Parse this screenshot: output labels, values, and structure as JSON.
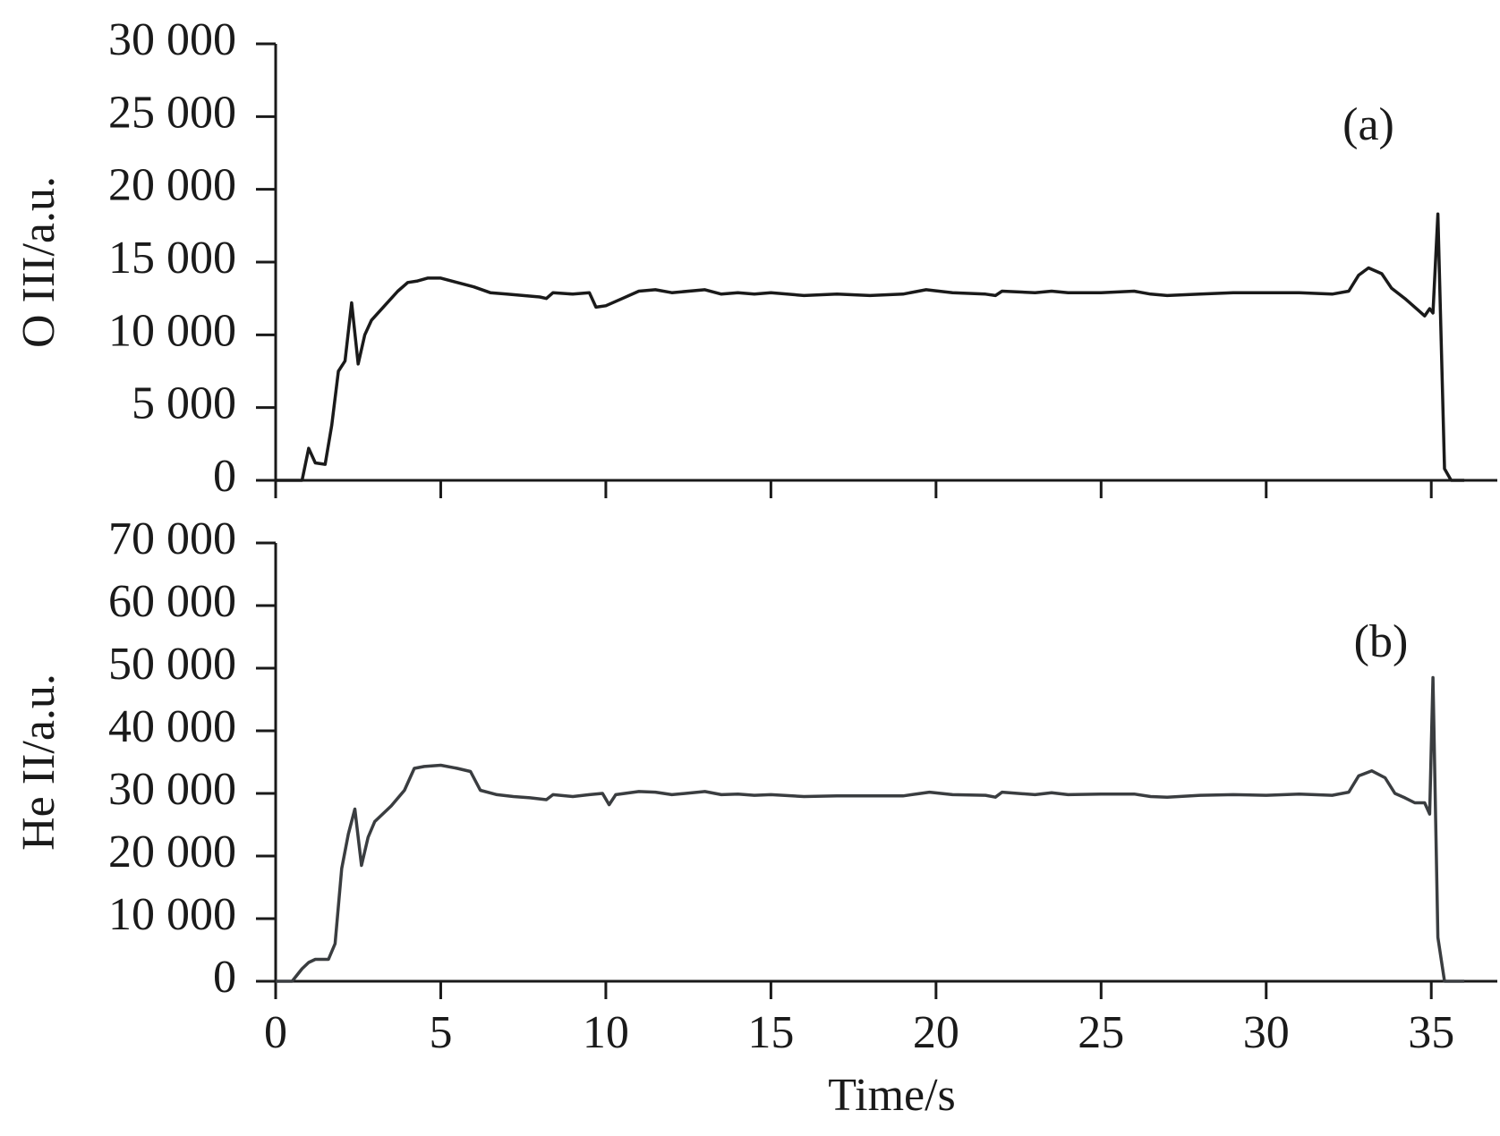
{
  "chart_data": [
    {
      "type": "line",
      "ylabel": "O III/a.u.",
      "annotation": "(a)",
      "color": "#1a1a1a",
      "xlim": [
        0,
        37
      ],
      "xticks": [
        0,
        5,
        10,
        15,
        20,
        25,
        30,
        35
      ],
      "ylim": [
        0,
        30000
      ],
      "yticks": [
        0,
        {
          "value": 5000,
          "label": "5 000"
        },
        {
          "value": 10000,
          "label": "10 000"
        },
        {
          "value": 15000,
          "label": "15 000"
        },
        {
          "value": 20000,
          "label": "20 000"
        },
        {
          "value": 25000,
          "label": "25 000"
        },
        {
          "value": 30000,
          "label": "30 000"
        }
      ],
      "x": [
        0,
        0.8,
        1.0,
        1.2,
        1.5,
        1.7,
        1.9,
        2.1,
        2.3,
        2.5,
        2.7,
        2.9,
        3.3,
        3.7,
        4.0,
        4.3,
        4.6,
        5.0,
        5.5,
        6.0,
        6.5,
        7.0,
        7.5,
        8.0,
        8.2,
        8.4,
        9.0,
        9.5,
        9.7,
        10.0,
        10.5,
        11.0,
        11.5,
        12.0,
        13.0,
        13.5,
        14.0,
        14.5,
        15.0,
        16.0,
        17.0,
        18.0,
        19.0,
        19.7,
        20.5,
        21.5,
        21.8,
        22.0,
        23.0,
        23.5,
        24.0,
        25.0,
        26.0,
        26.5,
        27.0,
        28.0,
        29.0,
        30.0,
        31.0,
        32.0,
        32.5,
        32.8,
        33.1,
        33.5,
        33.8,
        34.2,
        34.6,
        34.8,
        34.95,
        35.05,
        35.2,
        35.4,
        35.6,
        36.0
      ],
      "values": [
        0,
        0,
        2200,
        1200,
        1100,
        3800,
        7500,
        8200,
        12200,
        8000,
        10000,
        11000,
        12000,
        13000,
        13600,
        13700,
        13900,
        13900,
        13600,
        13300,
        12900,
        12800,
        12700,
        12600,
        12500,
        12900,
        12800,
        12900,
        11900,
        12000,
        12500,
        13000,
        13100,
        12900,
        13100,
        12800,
        12900,
        12800,
        12900,
        12700,
        12800,
        12700,
        12800,
        13100,
        12900,
        12800,
        12700,
        13000,
        12900,
        13000,
        12900,
        12900,
        13000,
        12800,
        12700,
        12800,
        12900,
        12900,
        12900,
        12800,
        13000,
        14100,
        14600,
        14200,
        13200,
        12500,
        11700,
        11300,
        11800,
        11500,
        18300,
        800,
        0,
        0
      ]
    },
    {
      "type": "line",
      "ylabel": "He II/a.u.",
      "xlabel": "Time/s",
      "annotation": "(b)",
      "color": "#3a3d40",
      "xlim": [
        0,
        37
      ],
      "xticks": [
        0,
        5,
        10,
        15,
        20,
        25,
        30,
        35
      ],
      "ylim": [
        0,
        70000
      ],
      "yticks": [
        0,
        {
          "value": 10000,
          "label": "10 000"
        },
        {
          "value": 20000,
          "label": "20 000"
        },
        {
          "value": 30000,
          "label": "30 000"
        },
        {
          "value": 40000,
          "label": "40 000"
        },
        {
          "value": 50000,
          "label": "50 000"
        },
        {
          "value": 60000,
          "label": "60 000"
        },
        {
          "value": 70000,
          "label": "70 000"
        }
      ],
      "x": [
        0,
        0.5,
        0.8,
        1.0,
        1.2,
        1.6,
        1.8,
        2.0,
        2.2,
        2.4,
        2.6,
        2.8,
        3.0,
        3.5,
        3.9,
        4.2,
        4.5,
        5.0,
        5.5,
        5.9,
        6.2,
        6.7,
        7.2,
        7.7,
        8.2,
        8.4,
        9.0,
        9.5,
        9.9,
        10.1,
        10.3,
        11.0,
        11.5,
        12.0,
        13.0,
        13.5,
        14.0,
        14.5,
        15.0,
        16.0,
        17.0,
        18.0,
        19.0,
        19.8,
        20.5,
        21.5,
        21.8,
        22.0,
        23.0,
        23.5,
        24.0,
        25.0,
        26.0,
        26.5,
        27.0,
        28.0,
        29.0,
        30.0,
        31.0,
        32.0,
        32.5,
        32.8,
        33.2,
        33.6,
        33.9,
        34.2,
        34.5,
        34.8,
        34.95,
        35.05,
        35.2,
        35.4,
        36.0
      ],
      "values": [
        0,
        0,
        2000,
        3000,
        3500,
        3500,
        6000,
        18000,
        23500,
        27500,
        18500,
        23000,
        25500,
        28000,
        30500,
        34000,
        34300,
        34500,
        34000,
        33500,
        30500,
        29800,
        29500,
        29300,
        29000,
        29800,
        29500,
        29800,
        30000,
        28200,
        29800,
        30300,
        30200,
        29800,
        30300,
        29800,
        29900,
        29700,
        29800,
        29500,
        29600,
        29600,
        29600,
        30200,
        29800,
        29700,
        29400,
        30200,
        29800,
        30100,
        29800,
        29900,
        29900,
        29500,
        29400,
        29700,
        29800,
        29700,
        29900,
        29700,
        30200,
        32800,
        33600,
        32500,
        30000,
        29300,
        28500,
        28500,
        26700,
        48500,
        7000,
        0,
        0
      ]
    }
  ]
}
